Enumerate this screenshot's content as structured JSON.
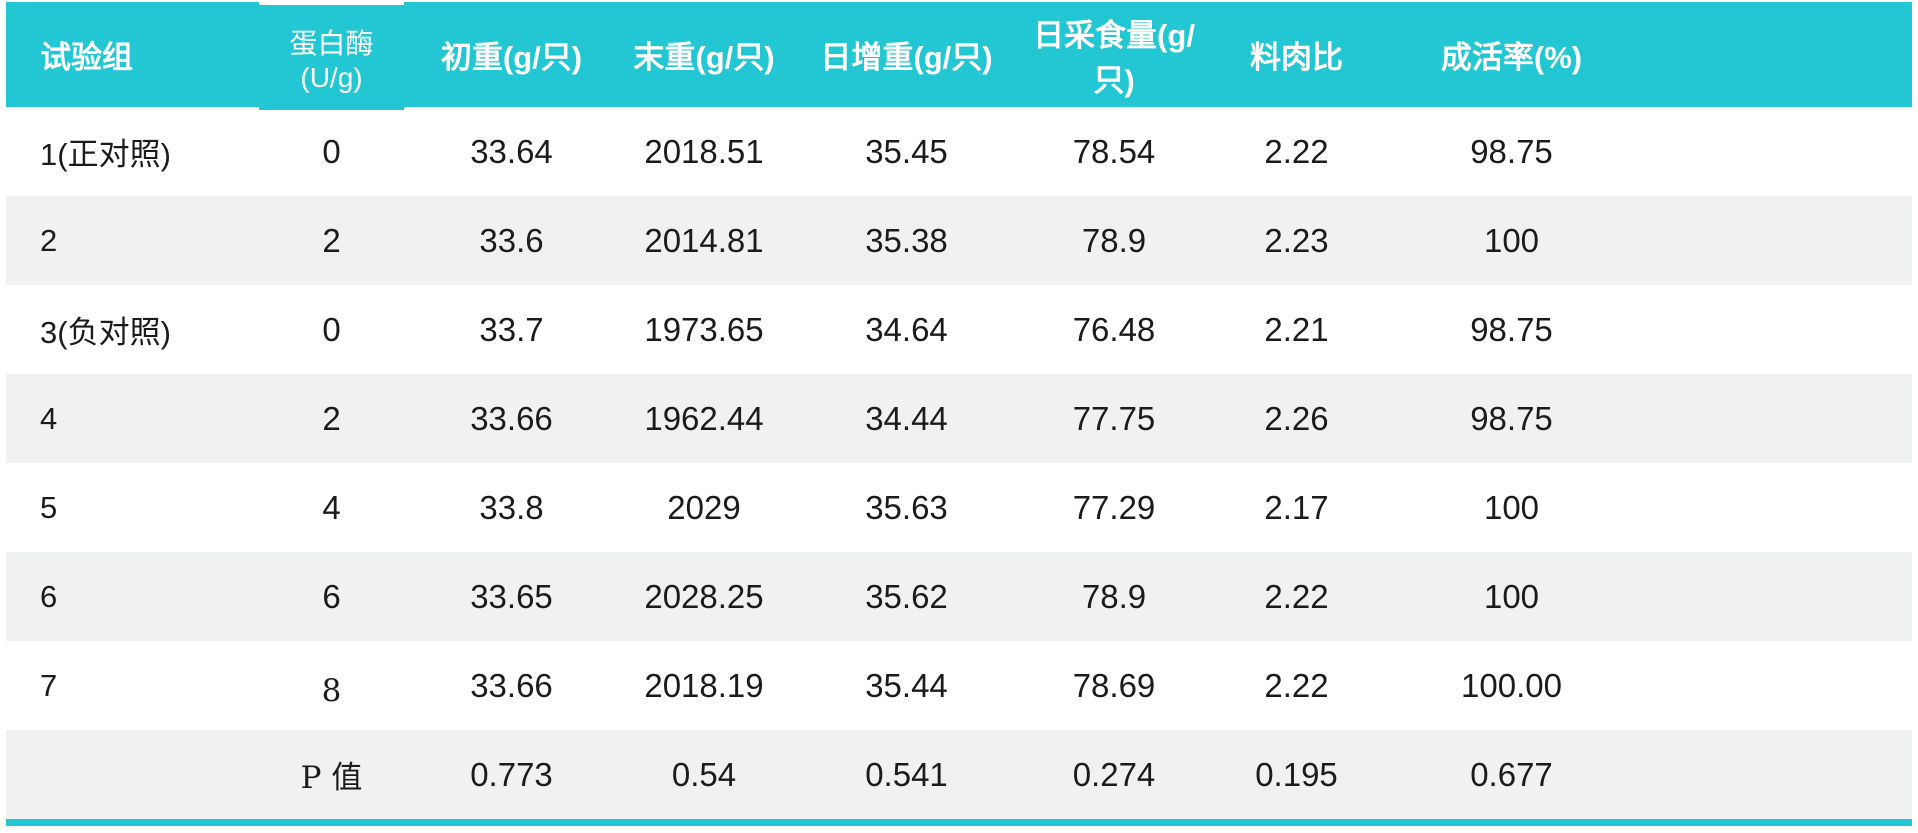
{
  "chart_data": {
    "type": "table",
    "columns": [
      "试验组",
      "蛋白酶(U/g)",
      "初重(g/只)",
      "末重(g/只)",
      "日增重(g/只)",
      "日采食量(g/只)",
      "料肉比",
      "成活率(%)"
    ],
    "rows": [
      [
        "1(正对照)",
        "0",
        "33.64",
        "2018.51",
        "35.45",
        "78.54",
        "2.22",
        "98.75"
      ],
      [
        "2",
        "2",
        "33.6",
        "2014.81",
        "35.38",
        "78.9",
        "2.23",
        "100"
      ],
      [
        "3(负对照)",
        "0",
        "33.7",
        "1973.65",
        "34.64",
        "76.48",
        "2.21",
        "98.75"
      ],
      [
        "4",
        "2",
        "33.66",
        "1962.44",
        "34.44",
        "77.75",
        "2.26",
        "98.75"
      ],
      [
        "5",
        "4",
        "33.8",
        "2029",
        "35.63",
        "77.29",
        "2.17",
        "100"
      ],
      [
        "6",
        "6",
        "33.65",
        "2028.25",
        "35.62",
        "78.9",
        "2.22",
        "100"
      ],
      [
        "7",
        "8",
        "33.66",
        "2018.19",
        "35.44",
        "78.69",
        "2.22",
        "100.00"
      ],
      [
        "",
        "P 值",
        "0.773",
        "0.54",
        "0.541",
        "0.274",
        "0.195",
        "0.677"
      ]
    ]
  },
  "colors": {
    "header_bg": "#22c7d3",
    "header_text": "#ffffff",
    "stripe_bg": "#f0f1f1",
    "body_text": "#1b1b1b",
    "bottom_rule": "#22c7d3"
  }
}
